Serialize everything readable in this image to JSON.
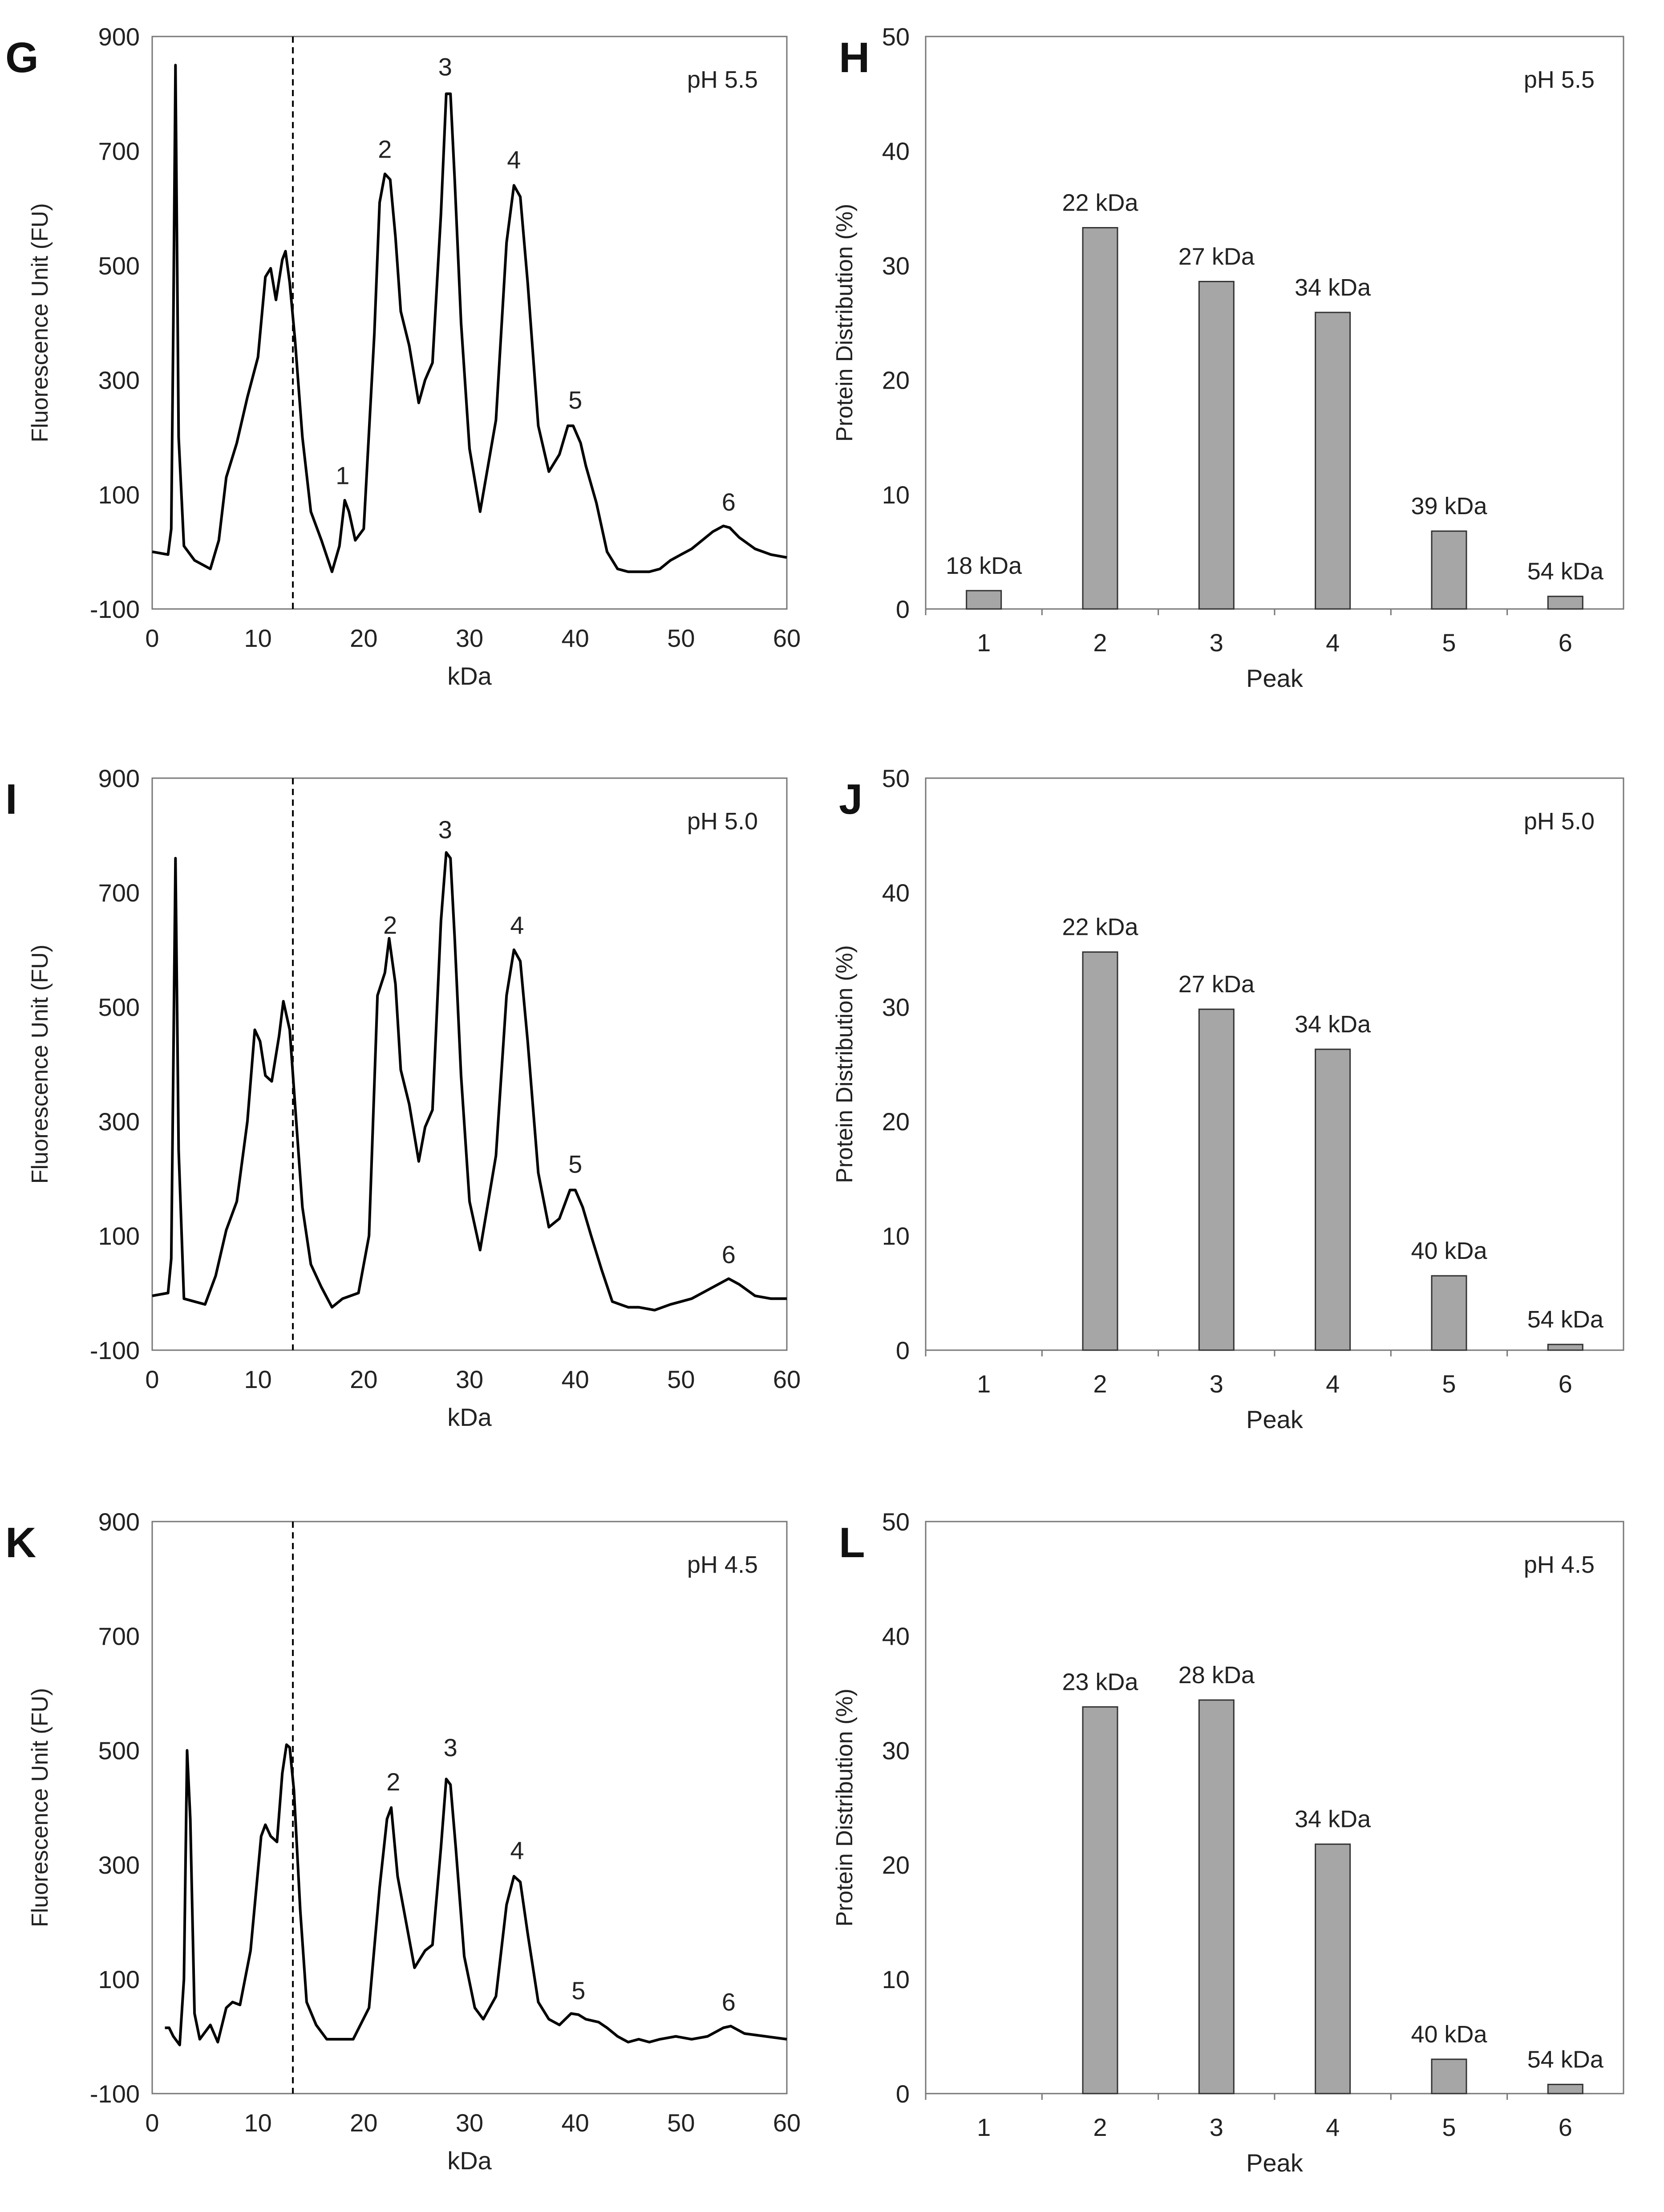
{
  "chart_data": [
    {
      "type": "line",
      "panel": "G",
      "annotation": "pH 5.5",
      "xlabel": "kDa",
      "ylabel": "Fluorescence Unit (FU)",
      "xlim": [
        0,
        60
      ],
      "ylim": [
        -100,
        900
      ],
      "xticks": [
        "0",
        "10",
        "20",
        "30",
        "40",
        "50",
        "60"
      ],
      "yticks": [
        "900",
        "700",
        "500",
        "300",
        "100",
        "-100"
      ],
      "cutoff_kda": 13.3,
      "trace": [
        [
          0,
          0
        ],
        [
          1.5,
          -5
        ],
        [
          1.8,
          40
        ],
        [
          2.0,
          400
        ],
        [
          2.2,
          850
        ],
        [
          2.5,
          200
        ],
        [
          3,
          10
        ],
        [
          4,
          -15
        ],
        [
          5.5,
          -30
        ],
        [
          6.3,
          20
        ],
        [
          7,
          130
        ],
        [
          8,
          190
        ],
        [
          9,
          270
        ],
        [
          10,
          340
        ],
        [
          10.7,
          480
        ],
        [
          11.2,
          495
        ],
        [
          11.7,
          440
        ],
        [
          12.3,
          510
        ],
        [
          12.6,
          525
        ],
        [
          13,
          470
        ],
        [
          13.5,
          370
        ],
        [
          14.2,
          200
        ],
        [
          15,
          70
        ],
        [
          16,
          20
        ],
        [
          17,
          -35
        ],
        [
          17.7,
          10
        ],
        [
          18.2,
          90
        ],
        [
          18.6,
          70
        ],
        [
          19.2,
          20
        ],
        [
          20,
          40
        ],
        [
          21,
          380
        ],
        [
          21.5,
          610
        ],
        [
          22,
          660
        ],
        [
          22.5,
          650
        ],
        [
          23,
          550
        ],
        [
          23.5,
          420
        ],
        [
          24.3,
          360
        ],
        [
          25.2,
          260
        ],
        [
          25.8,
          300
        ],
        [
          26.5,
          330
        ],
        [
          27.3,
          590
        ],
        [
          27.8,
          800
        ],
        [
          28.2,
          800
        ],
        [
          28.6,
          650
        ],
        [
          29.2,
          400
        ],
        [
          30,
          180
        ],
        [
          31,
          70
        ],
        [
          32.5,
          230
        ],
        [
          33.5,
          540
        ],
        [
          34.2,
          640
        ],
        [
          34.8,
          620
        ],
        [
          35.5,
          470
        ],
        [
          36.5,
          220
        ],
        [
          37.5,
          140
        ],
        [
          38.5,
          170
        ],
        [
          39.3,
          220
        ],
        [
          39.8,
          220
        ],
        [
          40.5,
          190
        ],
        [
          41,
          150
        ],
        [
          42,
          85
        ],
        [
          43,
          0
        ],
        [
          44,
          -30
        ],
        [
          45,
          -35
        ],
        [
          46,
          -35
        ],
        [
          47,
          -35
        ],
        [
          48,
          -30
        ],
        [
          49,
          -15
        ],
        [
          50,
          -5
        ],
        [
          51,
          5
        ],
        [
          52,
          20
        ],
        [
          53,
          35
        ],
        [
          54,
          45
        ],
        [
          54.6,
          42
        ],
        [
          55.5,
          25
        ],
        [
          57,
          5
        ],
        [
          58.5,
          -5
        ],
        [
          60,
          -10
        ]
      ],
      "peak_labels": [
        {
          "label": "1",
          "x": 18.0,
          "y": 118
        },
        {
          "label": "2",
          "x": 22.0,
          "y": 688
        },
        {
          "label": "3",
          "x": 27.7,
          "y": 832
        },
        {
          "label": "4",
          "x": 34.2,
          "y": 670
        },
        {
          "label": "5",
          "x": 40.0,
          "y": 250
        },
        {
          "label": "6",
          "x": 54.5,
          "y": 72
        }
      ]
    },
    {
      "type": "bar",
      "panel": "H",
      "annotation": "pH 5.5",
      "xlabel": "Peak",
      "ylabel": "Protein Distribution (%)",
      "ylim": [
        0,
        50
      ],
      "yticks": [
        "0",
        "10",
        "20",
        "30",
        "40",
        "50"
      ],
      "categories": [
        "1",
        "2",
        "3",
        "4",
        "5",
        "6"
      ],
      "values": [
        1.6,
        33.3,
        28.6,
        25.9,
        6.8,
        1.1
      ],
      "data_labels": [
        "18 kDa",
        "22 kDa",
        "27 kDa",
        "34 kDa",
        "39 kDa",
        "54 kDa"
      ]
    },
    {
      "type": "line",
      "panel": "I",
      "annotation": "pH 5.0",
      "xlabel": "kDa",
      "ylabel": "Fluorescence Unit (FU)",
      "xlim": [
        0,
        60
      ],
      "ylim": [
        -100,
        900
      ],
      "xticks": [
        "0",
        "10",
        "20",
        "30",
        "40",
        "50",
        "60"
      ],
      "yticks": [
        "900",
        "700",
        "500",
        "300",
        "100",
        "-100"
      ],
      "cutoff_kda": 13.3,
      "trace": [
        [
          0,
          -5
        ],
        [
          1.5,
          0
        ],
        [
          1.8,
          60
        ],
        [
          2.0,
          400
        ],
        [
          2.2,
          760
        ],
        [
          2.5,
          250
        ],
        [
          3,
          -10
        ],
        [
          4,
          -15
        ],
        [
          5,
          -20
        ],
        [
          6,
          30
        ],
        [
          7,
          110
        ],
        [
          8,
          160
        ],
        [
          9,
          300
        ],
        [
          9.7,
          460
        ],
        [
          10.2,
          440
        ],
        [
          10.7,
          380
        ],
        [
          11.3,
          370
        ],
        [
          12,
          450
        ],
        [
          12.4,
          510
        ],
        [
          13,
          460
        ],
        [
          13.5,
          330
        ],
        [
          14.2,
          150
        ],
        [
          15,
          50
        ],
        [
          16,
          10
        ],
        [
          17,
          -25
        ],
        [
          18,
          -10
        ],
        [
          19.5,
          0
        ],
        [
          20.5,
          100
        ],
        [
          21.3,
          520
        ],
        [
          22,
          560
        ],
        [
          22.4,
          620
        ],
        [
          23,
          540
        ],
        [
          23.5,
          390
        ],
        [
          24.3,
          330
        ],
        [
          25.2,
          230
        ],
        [
          25.8,
          290
        ],
        [
          26.5,
          320
        ],
        [
          27.3,
          650
        ],
        [
          27.8,
          770
        ],
        [
          28.2,
          760
        ],
        [
          28.6,
          620
        ],
        [
          29.2,
          380
        ],
        [
          30,
          160
        ],
        [
          31,
          75
        ],
        [
          32.5,
          240
        ],
        [
          33.5,
          520
        ],
        [
          34.2,
          600
        ],
        [
          34.8,
          580
        ],
        [
          35.5,
          440
        ],
        [
          36.5,
          210
        ],
        [
          37.5,
          115
        ],
        [
          38.5,
          130
        ],
        [
          39.5,
          180
        ],
        [
          40,
          180
        ],
        [
          40.7,
          150
        ],
        [
          41.5,
          100
        ],
        [
          42.5,
          40
        ],
        [
          43.5,
          -15
        ],
        [
          45,
          -25
        ],
        [
          46,
          -25
        ],
        [
          47.5,
          -30
        ],
        [
          49,
          -20
        ],
        [
          50,
          -15
        ],
        [
          51,
          -10
        ],
        [
          52,
          0
        ],
        [
          53.5,
          15
        ],
        [
          54.5,
          25
        ],
        [
          55.5,
          15
        ],
        [
          57,
          -5
        ],
        [
          58.5,
          -10
        ],
        [
          60,
          -10
        ]
      ],
      "peak_labels": [
        {
          "label": "2",
          "x": 22.5,
          "y": 628
        },
        {
          "label": "3",
          "x": 27.7,
          "y": 795
        },
        {
          "label": "4",
          "x": 34.5,
          "y": 628
        },
        {
          "label": "5",
          "x": 40.0,
          "y": 210
        },
        {
          "label": "6",
          "x": 54.5,
          "y": 52
        }
      ]
    },
    {
      "type": "bar",
      "panel": "J",
      "annotation": "pH 5.0",
      "xlabel": "Peak",
      "ylabel": "Protein Distribution (%)",
      "ylim": [
        0,
        50
      ],
      "yticks": [
        "0",
        "10",
        "20",
        "30",
        "40",
        "50"
      ],
      "categories": [
        "1",
        "2",
        "3",
        "4",
        "5",
        "6"
      ],
      "values": [
        0,
        34.8,
        29.8,
        26.3,
        6.5,
        0.5
      ],
      "data_labels": [
        "",
        "22 kDa",
        "27 kDa",
        "34 kDa",
        "40 kDa",
        "54 kDa"
      ]
    },
    {
      "type": "line",
      "panel": "K",
      "annotation": "pH 4.5",
      "xlabel": "kDa",
      "ylabel": "Fluorescence Unit (FU)",
      "xlim": [
        0,
        60
      ],
      "ylim": [
        -100,
        900
      ],
      "xticks": [
        "0",
        "10",
        "20",
        "30",
        "40",
        "50",
        "60"
      ],
      "yticks": [
        "900",
        "700",
        "500",
        "300",
        "100",
        "-100"
      ],
      "cutoff_kda": 13.3,
      "trace": [
        [
          1.2,
          15
        ],
        [
          1.6,
          15
        ],
        [
          2.0,
          0
        ],
        [
          2.6,
          -15
        ],
        [
          3.0,
          100
        ],
        [
          3.3,
          500
        ],
        [
          3.6,
          380
        ],
        [
          4.0,
          40
        ],
        [
          4.5,
          -5
        ],
        [
          5.5,
          20
        ],
        [
          6.2,
          -10
        ],
        [
          7.0,
          50
        ],
        [
          7.6,
          60
        ],
        [
          8.3,
          55
        ],
        [
          9.3,
          150
        ],
        [
          10.3,
          350
        ],
        [
          10.7,
          370
        ],
        [
          11.2,
          350
        ],
        [
          11.8,
          340
        ],
        [
          12.3,
          460
        ],
        [
          12.7,
          510
        ],
        [
          13,
          505
        ],
        [
          13.4,
          430
        ],
        [
          14.0,
          220
        ],
        [
          14.6,
          60
        ],
        [
          15.5,
          20
        ],
        [
          16.5,
          -5
        ],
        [
          17.5,
          -5
        ],
        [
          19,
          -5
        ],
        [
          20.5,
          50
        ],
        [
          21.5,
          260
        ],
        [
          22.2,
          380
        ],
        [
          22.6,
          400
        ],
        [
          23.2,
          280
        ],
        [
          24.0,
          200
        ],
        [
          24.8,
          120
        ],
        [
          25.8,
          150
        ],
        [
          26.5,
          160
        ],
        [
          27.3,
          330
        ],
        [
          27.8,
          450
        ],
        [
          28.2,
          440
        ],
        [
          28.7,
          330
        ],
        [
          29.5,
          140
        ],
        [
          30.5,
          50
        ],
        [
          31.3,
          30
        ],
        [
          32.5,
          70
        ],
        [
          33.5,
          230
        ],
        [
          34.2,
          280
        ],
        [
          34.8,
          270
        ],
        [
          35.5,
          180
        ],
        [
          36.5,
          60
        ],
        [
          37.5,
          30
        ],
        [
          38.5,
          20
        ],
        [
          39.6,
          40
        ],
        [
          40.3,
          38
        ],
        [
          41,
          30
        ],
        [
          42.2,
          25
        ],
        [
          43,
          15
        ],
        [
          44,
          0
        ],
        [
          45,
          -10
        ],
        [
          46,
          -5
        ],
        [
          47,
          -10
        ],
        [
          48,
          -5
        ],
        [
          49.5,
          0
        ],
        [
          51,
          -5
        ],
        [
          52.5,
          0
        ],
        [
          54,
          15
        ],
        [
          54.7,
          18
        ],
        [
          56,
          5
        ],
        [
          58,
          0
        ],
        [
          60,
          -5
        ]
      ],
      "peak_labels": [
        {
          "label": "2",
          "x": 22.8,
          "y": 430
        },
        {
          "label": "3",
          "x": 28.2,
          "y": 490
        },
        {
          "label": "4",
          "x": 34.5,
          "y": 310
        },
        {
          "label": "5",
          "x": 40.3,
          "y": 65
        },
        {
          "label": "6",
          "x": 54.5,
          "y": 45
        }
      ]
    },
    {
      "type": "bar",
      "panel": "L",
      "annotation": "pH 4.5",
      "xlabel": "Peak",
      "ylabel": "Protein Distribution (%)",
      "ylim": [
        0,
        50
      ],
      "yticks": [
        "0",
        "10",
        "20",
        "30",
        "40",
        "50"
      ],
      "categories": [
        "1",
        "2",
        "3",
        "4",
        "5",
        "6"
      ],
      "values": [
        0,
        33.8,
        34.4,
        21.8,
        3.0,
        0.8
      ],
      "data_labels": [
        "",
        "23 kDa",
        "28 kDa",
        "34 kDa",
        "40 kDa",
        "54 kDa"
      ]
    }
  ]
}
